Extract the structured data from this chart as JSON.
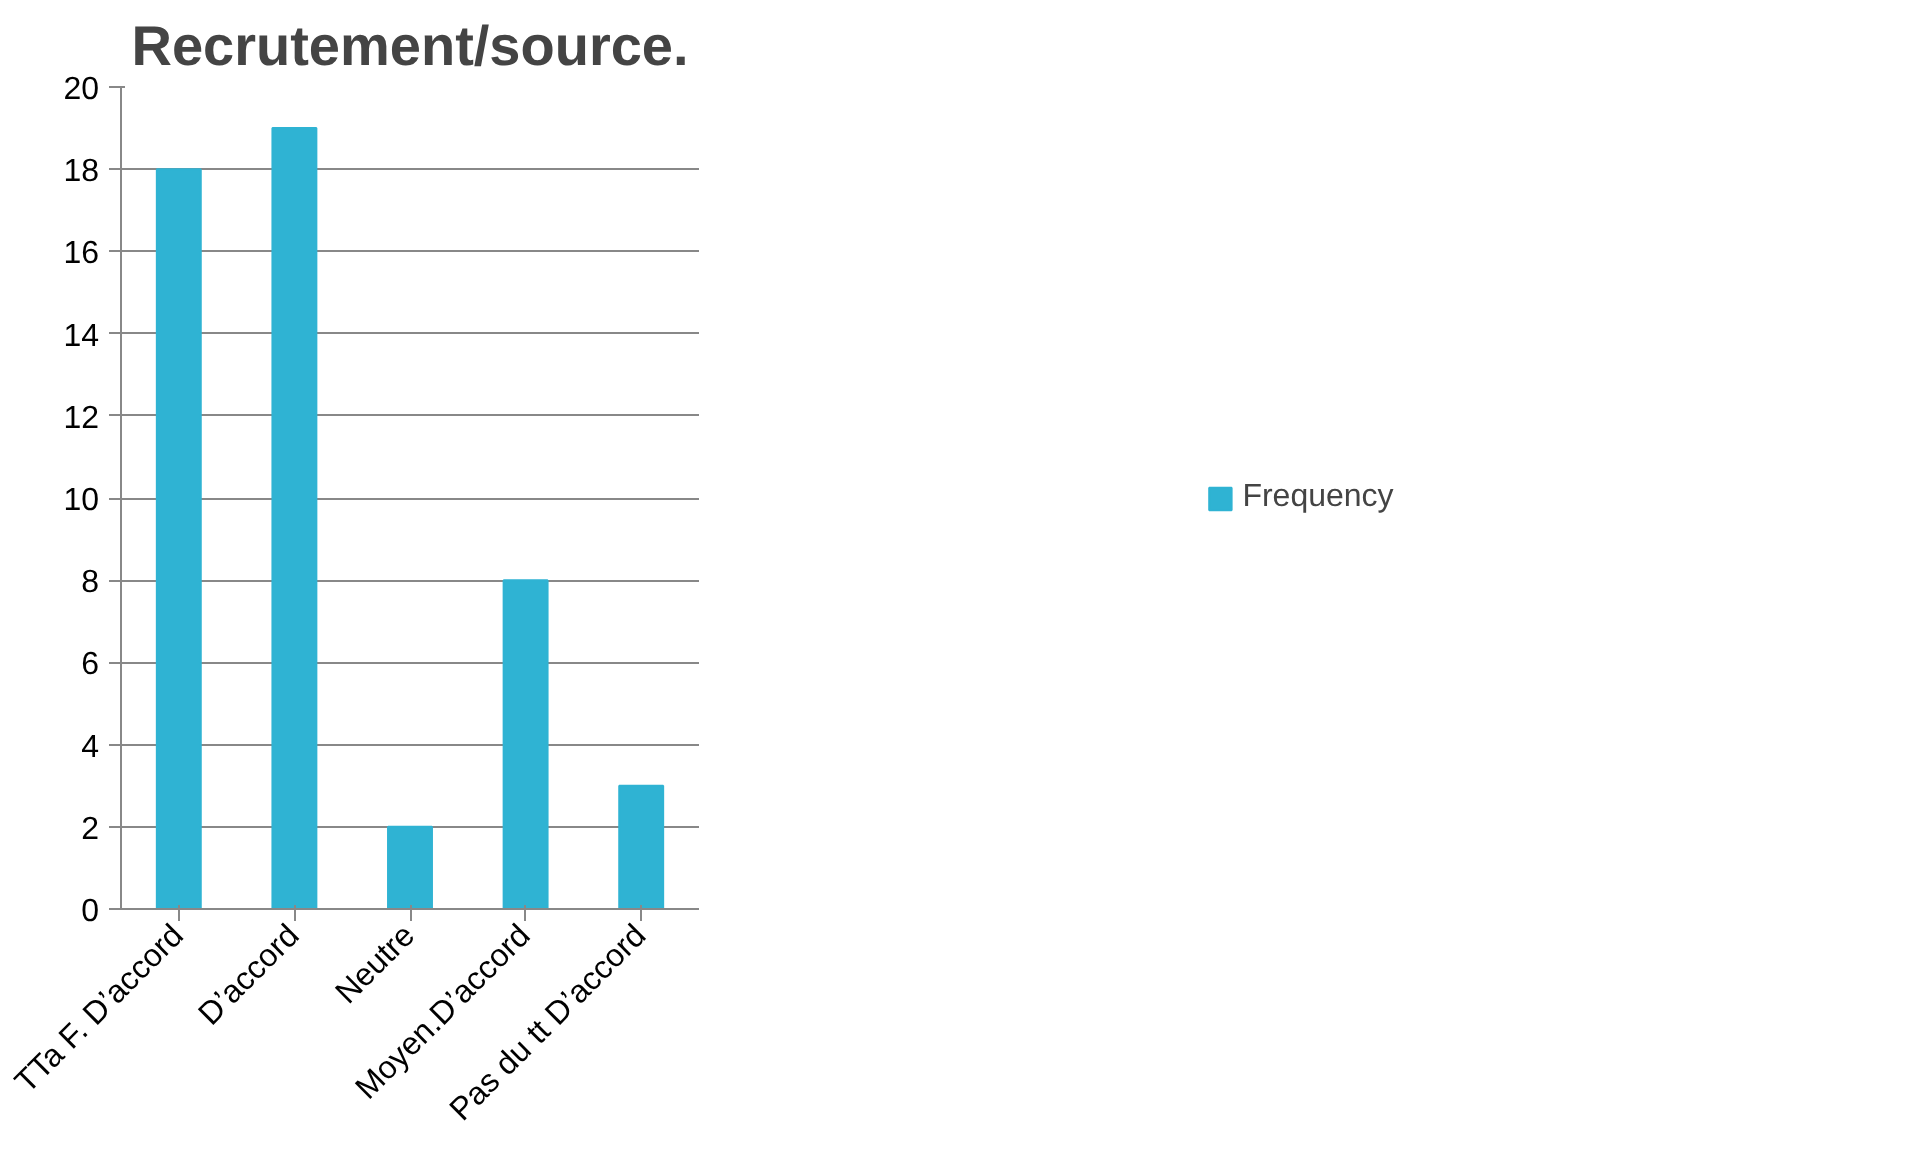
{
  "chart_data": {
    "type": "bar",
    "title": "Recrutement/source.",
    "categories": [
      "TTa F. D’accord",
      "D’accord",
      "Neutre",
      "Moyen.D’accord",
      "Pas du tt D’accord"
    ],
    "series": [
      {
        "name": "Frequency",
        "color": "#2fb3d3",
        "values": [
          18,
          19,
          2,
          8,
          3
        ]
      }
    ],
    "ylim": [
      0,
      20
    ],
    "yticks": [
      0,
      2,
      4,
      6,
      8,
      10,
      12,
      14,
      16,
      18,
      20
    ],
    "grid": "y",
    "legend": "right"
  }
}
